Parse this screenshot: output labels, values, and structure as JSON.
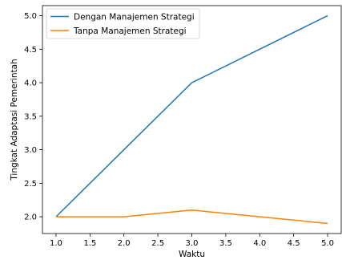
{
  "chart_data": {
    "type": "line",
    "title": "",
    "xlabel": "Waktu",
    "ylabel": "Tingkat Adaptasi Pemerintah",
    "xlim": [
      0.8,
      5.2
    ],
    "ylim": [
      1.75,
      5.15
    ],
    "xticks": [
      "1.0",
      "1.5",
      "2.0",
      "2.5",
      "3.0",
      "3.5",
      "4.0",
      "4.5",
      "5.0"
    ],
    "yticks": [
      "2.0",
      "2.5",
      "3.0",
      "3.5",
      "4.0",
      "4.5",
      "5.0"
    ],
    "grid": false,
    "legend_position": "top-left",
    "x": [
      1,
      2,
      3,
      4,
      5
    ],
    "series": [
      {
        "name": "Dengan Manajemen Strategi",
        "color": "#1f77b4",
        "values": [
          2.0,
          3.0,
          4.0,
          4.5,
          5.0
        ]
      },
      {
        "name": "Tanpa Manajemen Strategi",
        "color": "#ff7f0e",
        "values": [
          2.0,
          2.0,
          2.1,
          2.0,
          1.9
        ]
      }
    ]
  }
}
